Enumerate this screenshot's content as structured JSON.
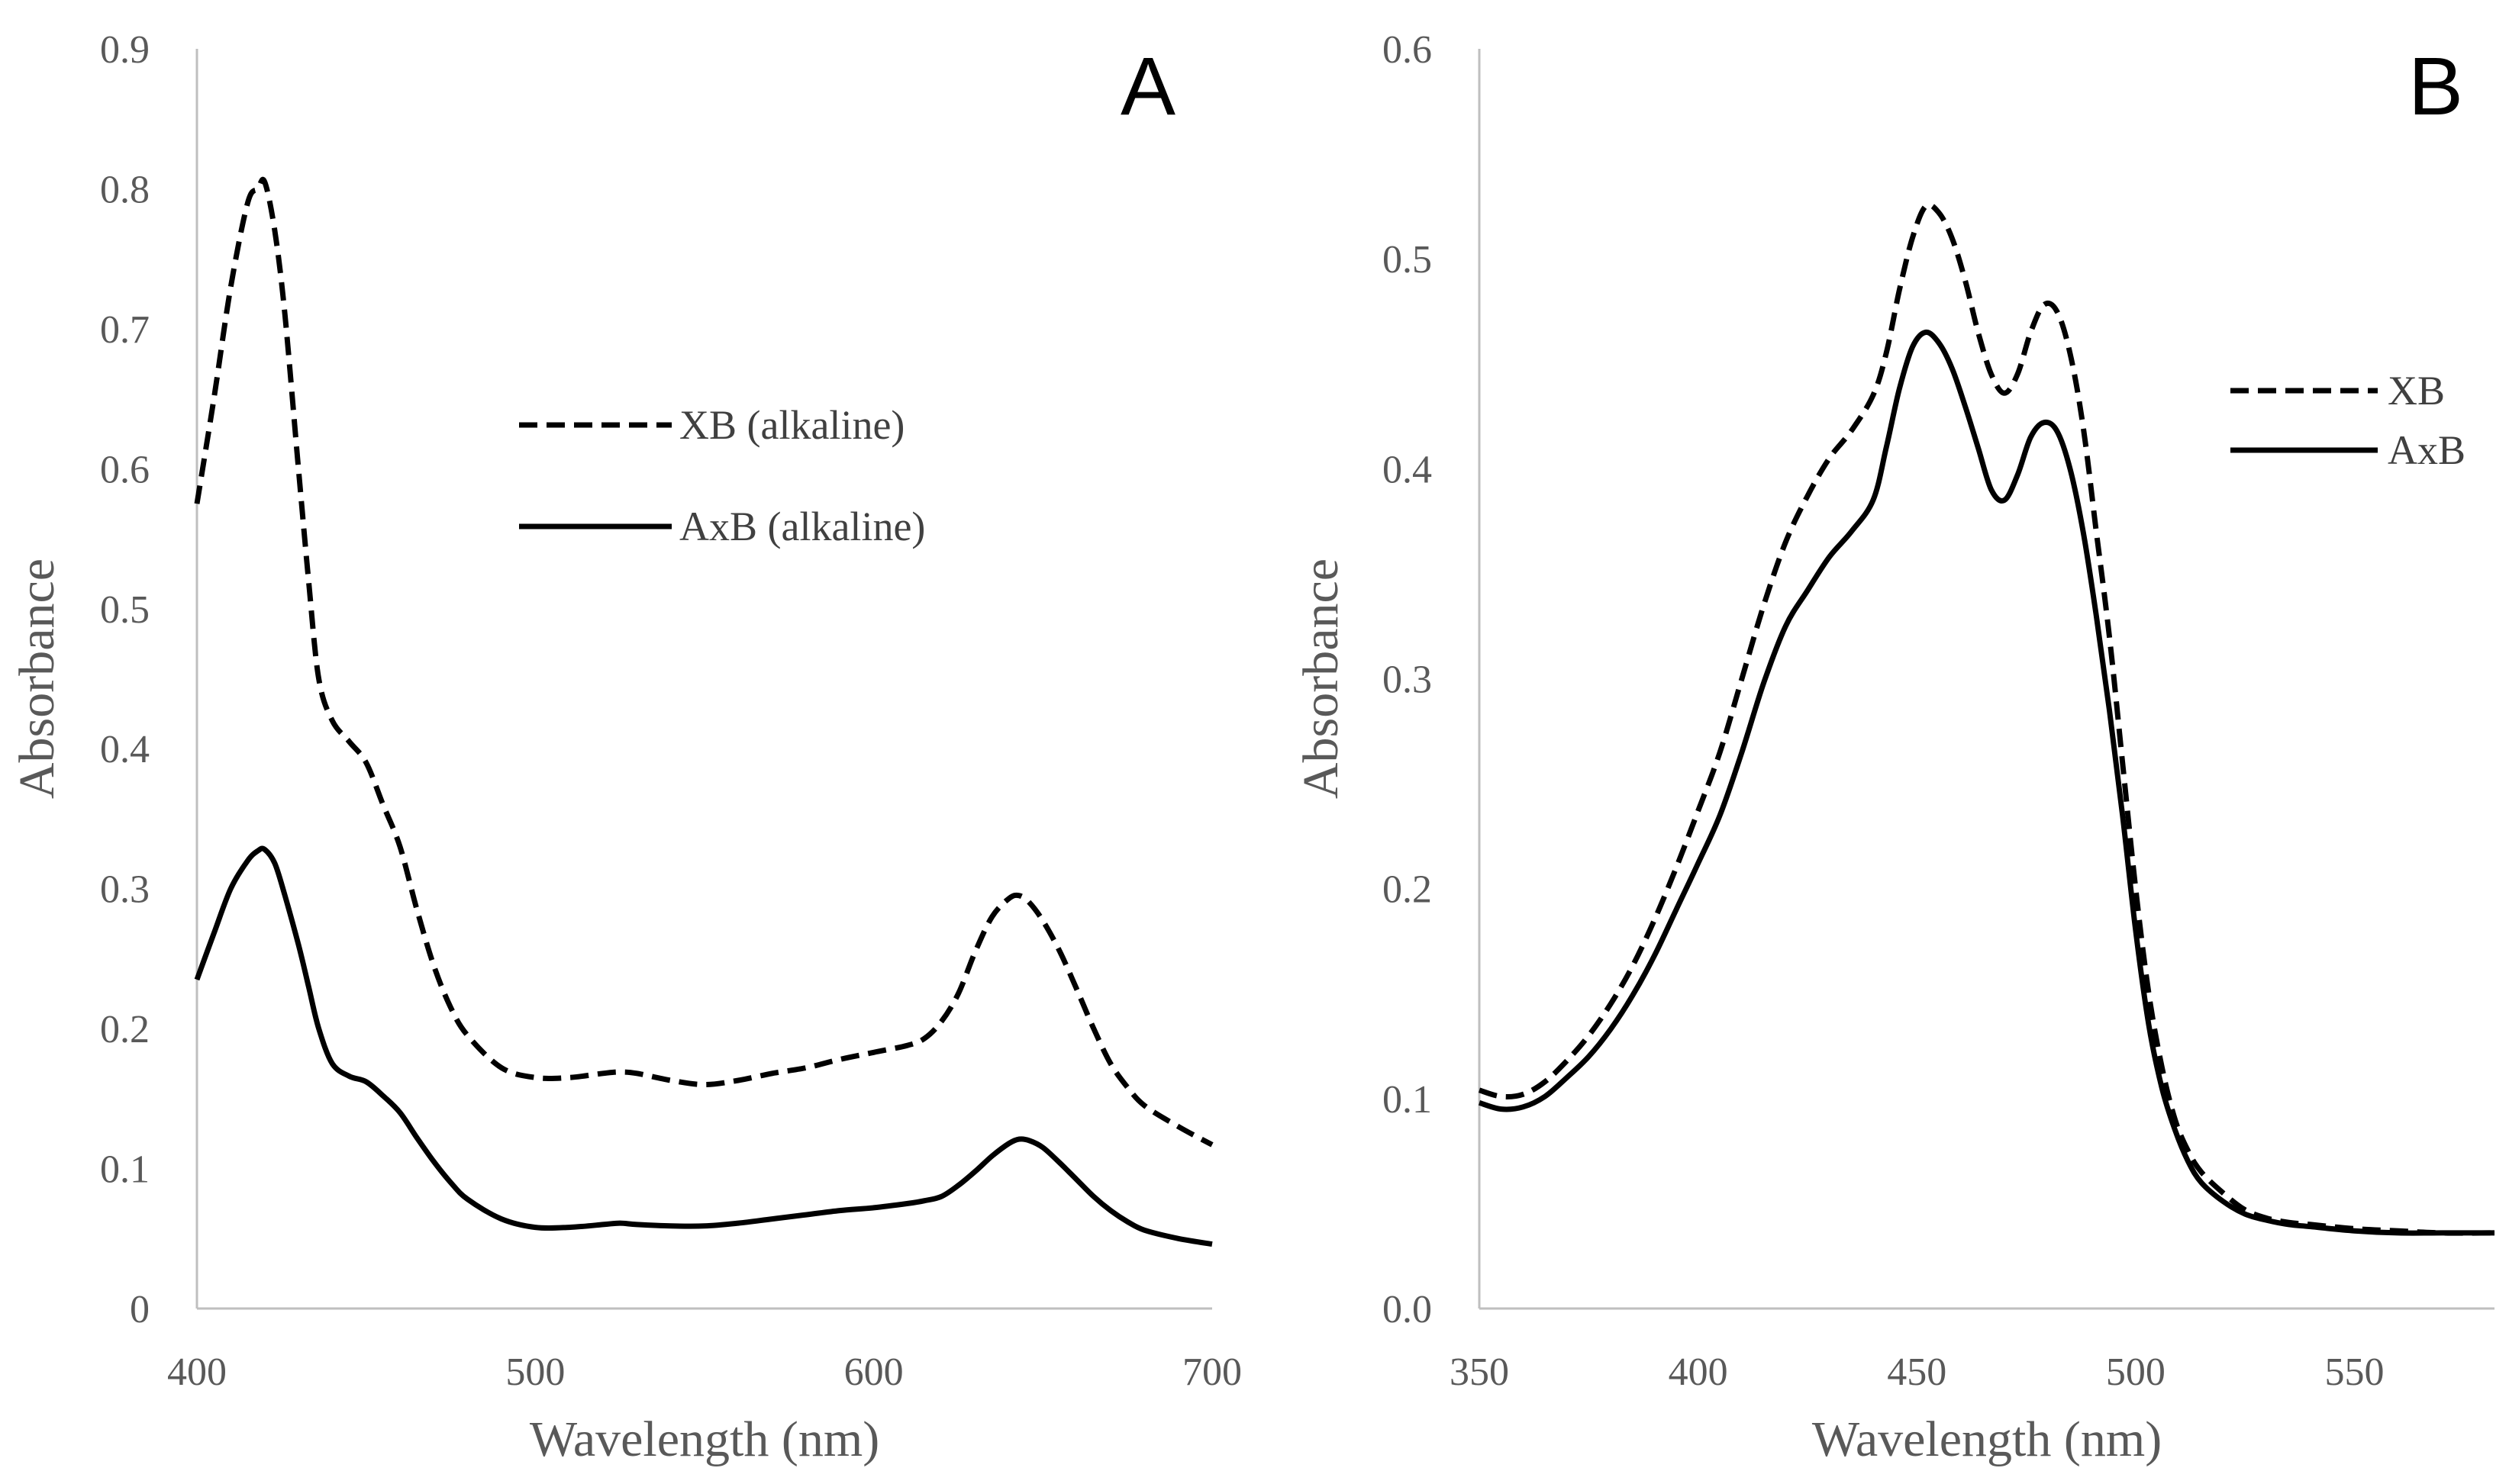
{
  "chart_data": [
    {
      "type": "line",
      "panel_label": "A",
      "xlabel": "Wavelength (nm)",
      "ylabel": "Absorbance",
      "xlim": [
        400,
        700
      ],
      "ylim": [
        0,
        0.9
      ],
      "xticks": [
        400,
        500,
        600,
        700
      ],
      "xtick_labels": [
        "400",
        "500",
        "600",
        "700"
      ],
      "yticks": [
        0,
        0.1,
        0.2,
        0.3,
        0.4,
        0.5,
        0.6,
        0.7,
        0.8,
        0.9
      ],
      "ytick_labels": [
        "0",
        "0.1",
        "0.2",
        "0.3",
        "0.4",
        "0.5",
        "0.6",
        "0.7",
        "0.8",
        "0.9"
      ],
      "grid": false,
      "legend_position": "upper-center",
      "series": [
        {
          "name": "XB (alkaline)",
          "style": "dashed",
          "x": [
            400,
            405,
            410,
            415,
            418,
            420,
            423,
            426,
            430,
            433,
            436,
            440,
            445,
            450,
            455,
            460,
            465,
            470,
            475,
            480,
            490,
            500,
            510,
            520,
            525,
            530,
            540,
            550,
            560,
            570,
            580,
            590,
            600,
            610,
            615,
            620,
            625,
            630,
            635,
            640,
            643,
            646,
            650,
            655,
            660,
            665,
            670,
            675,
            680,
            690,
            700
          ],
          "y": [
            0.575,
            0.65,
            0.73,
            0.79,
            0.8,
            0.805,
            0.77,
            0.71,
            0.6,
            0.52,
            0.45,
            0.42,
            0.405,
            0.39,
            0.36,
            0.33,
            0.285,
            0.245,
            0.215,
            0.195,
            0.172,
            0.165,
            0.165,
            0.168,
            0.169,
            0.168,
            0.163,
            0.16,
            0.163,
            0.168,
            0.172,
            0.178,
            0.183,
            0.188,
            0.193,
            0.205,
            0.225,
            0.255,
            0.28,
            0.293,
            0.295,
            0.29,
            0.277,
            0.255,
            0.228,
            0.2,
            0.175,
            0.158,
            0.145,
            0.13,
            0.117
          ]
        },
        {
          "name": "AxB (alkaline)",
          "style": "solid",
          "x": [
            400,
            405,
            410,
            415,
            418,
            420,
            423,
            426,
            430,
            433,
            436,
            440,
            445,
            450,
            455,
            460,
            465,
            470,
            475,
            480,
            490,
            500,
            510,
            520,
            525,
            530,
            540,
            550,
            560,
            570,
            580,
            590,
            600,
            610,
            615,
            620,
            625,
            630,
            635,
            640,
            643,
            646,
            650,
            655,
            660,
            665,
            670,
            675,
            680,
            690,
            700
          ],
          "y": [
            0.235,
            0.268,
            0.3,
            0.32,
            0.327,
            0.328,
            0.318,
            0.295,
            0.26,
            0.23,
            0.2,
            0.175,
            0.166,
            0.162,
            0.152,
            0.14,
            0.122,
            0.105,
            0.09,
            0.078,
            0.064,
            0.058,
            0.058,
            0.06,
            0.061,
            0.06,
            0.059,
            0.059,
            0.061,
            0.064,
            0.067,
            0.07,
            0.072,
            0.075,
            0.077,
            0.08,
            0.088,
            0.098,
            0.109,
            0.118,
            0.121,
            0.12,
            0.115,
            0.104,
            0.092,
            0.08,
            0.07,
            0.062,
            0.056,
            0.05,
            0.046
          ]
        }
      ]
    },
    {
      "type": "line",
      "panel_label": "B",
      "xlabel": "Wavelength (nm)",
      "ylabel": "Absorbance",
      "xlim": [
        350,
        582
      ],
      "ylim": [
        0,
        0.6
      ],
      "xticks": [
        350,
        400,
        450,
        500,
        550
      ],
      "xtick_labels": [
        "350",
        "400",
        "450",
        "500",
        "550"
      ],
      "yticks": [
        0,
        0.1,
        0.2,
        0.3,
        0.4,
        0.5,
        0.6
      ],
      "ytick_labels": [
        "0.0",
        "0.1",
        "0.2",
        "0.3",
        "0.4",
        "0.5",
        "0.6"
      ],
      "grid": false,
      "legend_position": "upper-right",
      "series": [
        {
          "name": "XB",
          "style": "dashed",
          "x": [
            350,
            355,
            360,
            365,
            370,
            375,
            380,
            385,
            390,
            395,
            400,
            405,
            410,
            415,
            420,
            425,
            430,
            435,
            440,
            443,
            446,
            449,
            452,
            455,
            458,
            461,
            464,
            467,
            470,
            473,
            476,
            479,
            482,
            485,
            488,
            491,
            494,
            497,
            500,
            503,
            506,
            509,
            512,
            515,
            520,
            525,
            530,
            535,
            540,
            550,
            560,
            570,
            582
          ],
          "y": [
            0.104,
            0.101,
            0.102,
            0.108,
            0.118,
            0.13,
            0.145,
            0.163,
            0.185,
            0.21,
            0.237,
            0.265,
            0.3,
            0.335,
            0.365,
            0.387,
            0.405,
            0.418,
            0.435,
            0.455,
            0.485,
            0.51,
            0.525,
            0.522,
            0.51,
            0.49,
            0.465,
            0.445,
            0.436,
            0.445,
            0.465,
            0.478,
            0.475,
            0.455,
            0.42,
            0.37,
            0.32,
            0.26,
            0.2,
            0.15,
            0.115,
            0.09,
            0.075,
            0.065,
            0.055,
            0.047,
            0.043,
            0.041,
            0.04,
            0.038,
            0.037,
            0.036,
            0.036
          ]
        },
        {
          "name": "AxB",
          "style": "solid",
          "x": [
            350,
            355,
            360,
            365,
            370,
            375,
            380,
            385,
            390,
            395,
            400,
            405,
            410,
            415,
            420,
            425,
            430,
            435,
            440,
            443,
            446,
            449,
            452,
            455,
            458,
            461,
            464,
            467,
            470,
            473,
            476,
            479,
            482,
            485,
            488,
            491,
            494,
            497,
            500,
            503,
            506,
            509,
            512,
            515,
            520,
            525,
            530,
            535,
            540,
            550,
            560,
            570,
            582
          ],
          "y": [
            0.098,
            0.095,
            0.096,
            0.101,
            0.11,
            0.12,
            0.133,
            0.149,
            0.168,
            0.19,
            0.212,
            0.235,
            0.265,
            0.298,
            0.325,
            0.342,
            0.358,
            0.37,
            0.385,
            0.41,
            0.438,
            0.458,
            0.465,
            0.46,
            0.448,
            0.43,
            0.41,
            0.39,
            0.385,
            0.397,
            0.415,
            0.422,
            0.418,
            0.4,
            0.37,
            0.33,
            0.285,
            0.235,
            0.18,
            0.135,
            0.105,
            0.085,
            0.07,
            0.06,
            0.051,
            0.045,
            0.042,
            0.04,
            0.039,
            0.037,
            0.036,
            0.036,
            0.036
          ]
        }
      ]
    }
  ]
}
